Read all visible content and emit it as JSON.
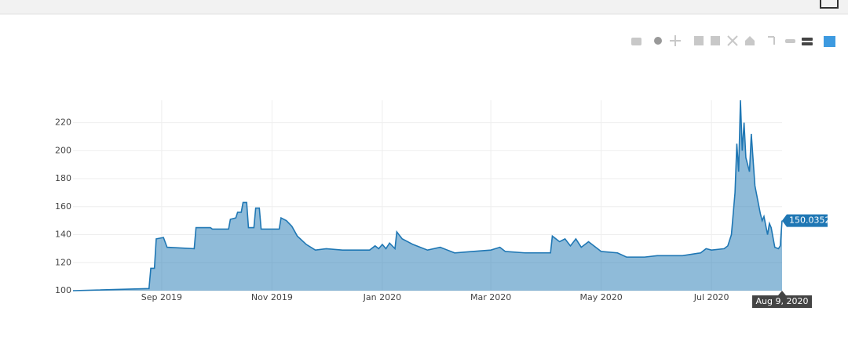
{
  "chart_data": {
    "type": "area",
    "color": "#1f77b4",
    "fill": "rgba(31,119,180,0.5)",
    "x": [
      "2019-07-14",
      "2019-08-25",
      "2019-08-26",
      "2019-08-28",
      "2019-08-29",
      "2019-09-02",
      "2019-09-04",
      "2019-09-19",
      "2019-09-20",
      "2019-09-28",
      "2019-09-29",
      "2019-10-08",
      "2019-10-09",
      "2019-10-12",
      "2019-10-13",
      "2019-10-15",
      "2019-10-16",
      "2019-10-18",
      "2019-10-19",
      "2019-10-22",
      "2019-10-23",
      "2019-10-25",
      "2019-10-26",
      "2019-11-05",
      "2019-11-06",
      "2019-11-09",
      "2019-11-12",
      "2019-11-15",
      "2019-11-20",
      "2019-11-25",
      "2019-12-01",
      "2019-12-10",
      "2019-12-25",
      "2019-12-28",
      "2019-12-30",
      "2020-01-01",
      "2020-01-03",
      "2020-01-05",
      "2020-01-08",
      "2020-01-09",
      "2020-01-12",
      "2020-01-18",
      "2020-01-22",
      "2020-01-26",
      "2020-02-02",
      "2020-02-06",
      "2020-02-10",
      "2020-02-20",
      "2020-03-01",
      "2020-03-06",
      "2020-03-09",
      "2020-03-20",
      "2020-04-03",
      "2020-04-04",
      "2020-04-08",
      "2020-04-11",
      "2020-04-14",
      "2020-04-17",
      "2020-04-20",
      "2020-04-24",
      "2020-04-28",
      "2020-05-01",
      "2020-05-10",
      "2020-05-15",
      "2020-05-25",
      "2020-06-01",
      "2020-06-15",
      "2020-06-25",
      "2020-06-28",
      "2020-07-01",
      "2020-07-08",
      "2020-07-10",
      "2020-07-12",
      "2020-07-14",
      "2020-07-15",
      "2020-07-16",
      "2020-07-17",
      "2020-07-18",
      "2020-07-19",
      "2020-07-20",
      "2020-07-22",
      "2020-07-23",
      "2020-07-25",
      "2020-07-28",
      "2020-07-29",
      "2020-07-30",
      "2020-08-01",
      "2020-08-02",
      "2020-08-03",
      "2020-08-05",
      "2020-08-07",
      "2020-08-08",
      "2020-08-09"
    ],
    "values": [
      100,
      101.5,
      116,
      116,
      137,
      138,
      131,
      130,
      145,
      145,
      144,
      144,
      151,
      152,
      156,
      156,
      163,
      163,
      145,
      145,
      159,
      159,
      144,
      144,
      152,
      150,
      146,
      139,
      133,
      129,
      130,
      129,
      129,
      132,
      130,
      133,
      130,
      134,
      130,
      142,
      137,
      133,
      131,
      129,
      131,
      129,
      127,
      128,
      129,
      131,
      128,
      127,
      127,
      139,
      135,
      137,
      132,
      137,
      131,
      135,
      131,
      128,
      127,
      124,
      124,
      125,
      125,
      127,
      130,
      129,
      130,
      132,
      140,
      170,
      205,
      185,
      236,
      200,
      220,
      195,
      185,
      212,
      175,
      155,
      150,
      153,
      140,
      148,
      145,
      131,
      130,
      132,
      150.0352
    ],
    "xlim": [
      "2019-07-14",
      "2020-08-09"
    ],
    "xticks": [
      {
        "value": "2019-09-01",
        "label": "Sep 2019"
      },
      {
        "value": "2019-11-01",
        "label": "Nov 2019"
      },
      {
        "value": "2020-01-01",
        "label": "Jan 2020"
      },
      {
        "value": "2020-03-01",
        "label": "Mar 2020"
      },
      {
        "value": "2020-05-01",
        "label": "May 2020"
      },
      {
        "value": "2020-07-01",
        "label": "Jul 2020"
      }
    ],
    "ylim": [
      100,
      236
    ],
    "yticks": [
      100,
      120,
      140,
      160,
      180,
      200,
      220
    ],
    "grid": true,
    "hover_x_label": "Aug 9, 2020"
  }
}
